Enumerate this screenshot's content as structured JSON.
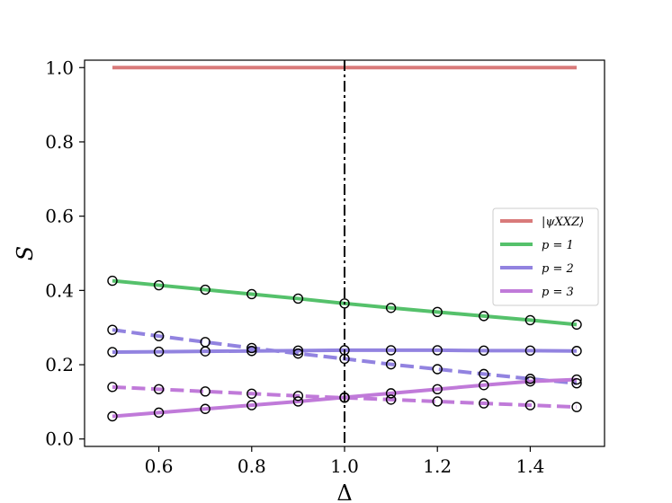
{
  "chart_data": {
    "type": "line",
    "xlabel": "Δ",
    "ylabel": "S",
    "xlim": [
      0.44,
      1.56
    ],
    "ylim": [
      -0.02,
      1.02
    ],
    "xticks": [
      0.6,
      0.8,
      1.0,
      1.2,
      1.4
    ],
    "xtick_labels": [
      "0.6",
      "0.8",
      "1.0",
      "1.2",
      "1.4"
    ],
    "yticks": [
      0.0,
      0.2,
      0.4,
      0.6,
      0.8,
      1.0
    ],
    "ytick_labels": [
      "0.0",
      "0.2",
      "0.4",
      "0.6",
      "0.8",
      "1.0"
    ],
    "vline": {
      "x": 1.0,
      "style": "dashdot",
      "color": "#000000"
    },
    "legend_position": "center-right",
    "series": [
      {
        "name": "|ψXXZ⟩",
        "color": "#d97a7a",
        "style": "solid",
        "markers": false,
        "x": [
          0.5,
          1.5
        ],
        "y": [
          1.0,
          1.0
        ]
      },
      {
        "name": "p = 1",
        "color": "#55c16b",
        "style": "solid",
        "markers": true,
        "x": [
          0.5,
          0.6,
          0.7,
          0.8,
          0.9,
          1.0,
          1.1,
          1.2,
          1.3,
          1.4,
          1.5
        ],
        "y": [
          0.426,
          0.414,
          0.402,
          0.39,
          0.378,
          0.365,
          0.353,
          0.342,
          0.331,
          0.32,
          0.308
        ]
      },
      {
        "name": "p = 2",
        "color": "#9283e0",
        "style": "solid",
        "markers": true,
        "x": [
          0.5,
          0.6,
          0.7,
          0.8,
          0.9,
          1.0,
          1.1,
          1.2,
          1.3,
          1.4,
          1.5
        ],
        "y": [
          0.234,
          0.235,
          0.236,
          0.237,
          0.238,
          0.239,
          0.239,
          0.239,
          0.238,
          0.238,
          0.237
        ]
      },
      {
        "name": "",
        "color": "#9283e0",
        "style": "dashed",
        "markers": true,
        "x": [
          0.5,
          0.6,
          0.7,
          0.8,
          0.9,
          1.0,
          1.1,
          1.2,
          1.3,
          1.4,
          1.5
        ],
        "y": [
          0.294,
          0.277,
          0.261,
          0.245,
          0.23,
          0.216,
          0.201,
          0.188,
          0.175,
          0.162,
          0.15
        ]
      },
      {
        "name": "p = 3",
        "color": "#c07ad9",
        "style": "solid",
        "markers": true,
        "x": [
          0.5,
          0.6,
          0.7,
          0.8,
          0.9,
          1.0,
          1.1,
          1.2,
          1.3,
          1.4,
          1.5
        ],
        "y": [
          0.061,
          0.071,
          0.081,
          0.091,
          0.101,
          0.112,
          0.123,
          0.134,
          0.145,
          0.155,
          0.16
        ]
      },
      {
        "name": "",
        "color": "#c07ad9",
        "style": "dashed",
        "markers": true,
        "x": [
          0.5,
          0.6,
          0.7,
          0.8,
          0.9,
          1.0,
          1.1,
          1.2,
          1.3,
          1.4,
          1.5
        ],
        "y": [
          0.14,
          0.134,
          0.128,
          0.122,
          0.116,
          0.111,
          0.106,
          0.101,
          0.096,
          0.091,
          0.086
        ]
      }
    ]
  }
}
